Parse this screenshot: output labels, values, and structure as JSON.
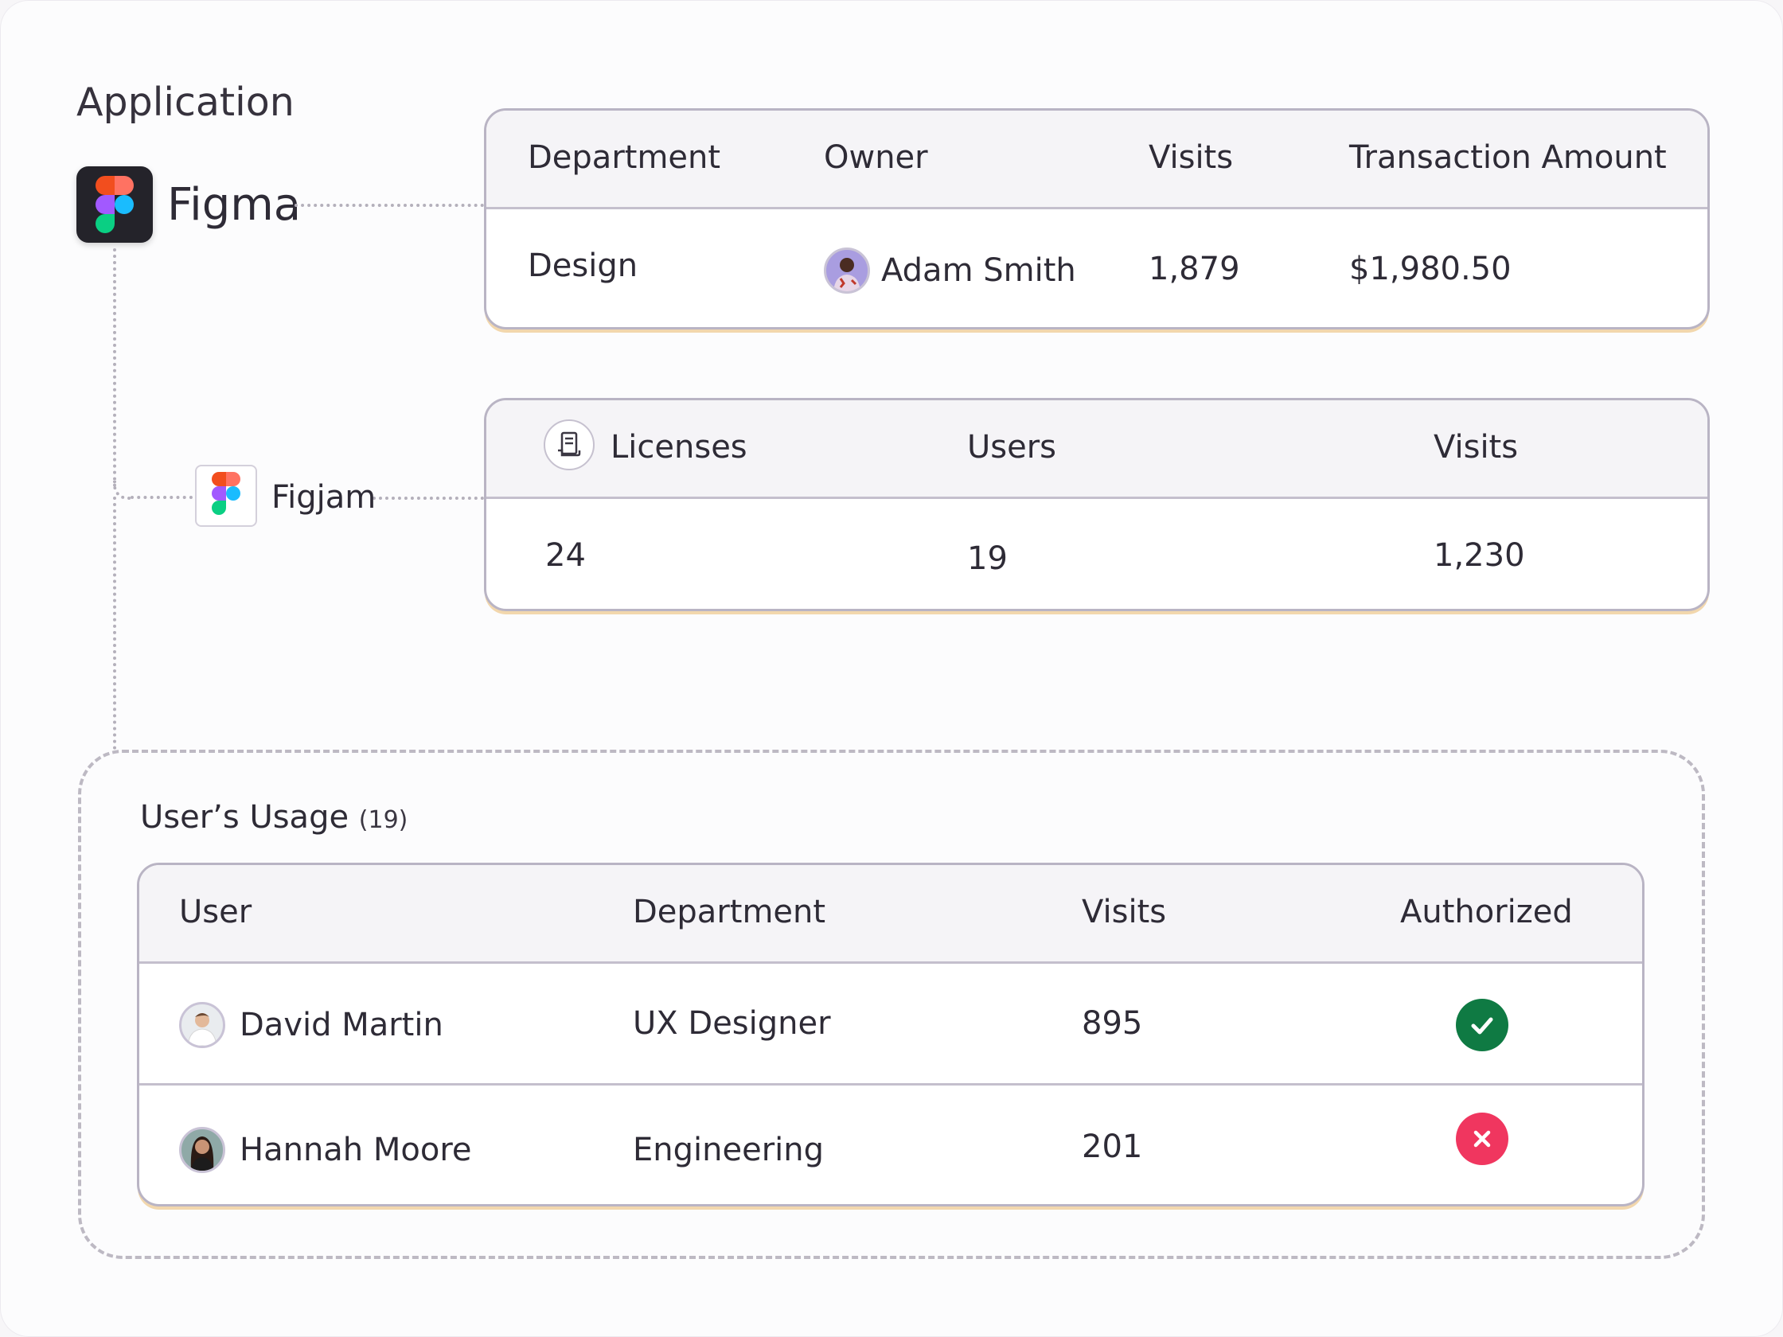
{
  "section": {
    "title": "Application"
  },
  "apps": {
    "primary": {
      "name": "Figma",
      "icon": "figma-logo-icon"
    },
    "secondary": {
      "name": "Figjam",
      "icon": "figma-logo-icon"
    }
  },
  "figma_table": {
    "headers": [
      "Department",
      "Owner",
      "Visits",
      "Transaction Amount"
    ],
    "row": {
      "department": "Design",
      "owner": "Adam Smith",
      "visits": "1,879",
      "amount": "$1,980.50"
    }
  },
  "figjam_table": {
    "headers": [
      "Licenses",
      "Users",
      "Visits"
    ],
    "header_icon": "document-icon",
    "row": {
      "licenses": "24",
      "users": "19",
      "visits": "1,230"
    }
  },
  "usage": {
    "title": "User’s Usage",
    "count": "(19)",
    "headers": [
      "User",
      "Department",
      "Visits",
      "Authorized"
    ],
    "rows": [
      {
        "user": "David Martin",
        "department": "UX Designer",
        "visits": "895",
        "authorized": true,
        "status_icon": "check-icon"
      },
      {
        "user": "Hannah Moore",
        "department": "Engineering",
        "visits": "201",
        "authorized": false,
        "status_icon": "x-icon"
      }
    ]
  },
  "colors": {
    "authorized": "#0f7a43",
    "unauthorized": "#f0365f",
    "card_border": "#b9b4c4",
    "card_accent": "#f2d7ad"
  }
}
